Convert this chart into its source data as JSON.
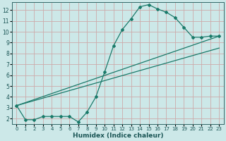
{
  "xlabel": "Humidex (Indice chaleur)",
  "bg_color": "#cce8e8",
  "grid_color": "#aacccc",
  "line_color": "#1a7a6a",
  "xlim": [
    -0.5,
    23.5
  ],
  "ylim": [
    1.5,
    12.7
  ],
  "yticks": [
    2,
    3,
    4,
    5,
    6,
    7,
    8,
    9,
    10,
    11,
    12
  ],
  "xticks": [
    0,
    1,
    2,
    3,
    4,
    5,
    6,
    7,
    8,
    9,
    10,
    11,
    12,
    13,
    14,
    15,
    16,
    17,
    18,
    19,
    20,
    21,
    22,
    23
  ],
  "line1_x": [
    0,
    1,
    2,
    3,
    4,
    5,
    6,
    7,
    8,
    9,
    10,
    11,
    12,
    13,
    14,
    15,
    16,
    17,
    18,
    19,
    20,
    21,
    22,
    23
  ],
  "line1_y": [
    3.2,
    1.9,
    1.9,
    2.2,
    2.2,
    2.2,
    2.2,
    1.7,
    2.6,
    4.0,
    6.3,
    8.7,
    10.2,
    11.2,
    12.3,
    12.5,
    12.1,
    11.8,
    11.3,
    10.4,
    9.5,
    9.5,
    9.6,
    9.6
  ],
  "line2_x": [
    0,
    23
  ],
  "line2_y": [
    3.2,
    9.6
  ],
  "line3_x": [
    0,
    23
  ],
  "line3_y": [
    3.2,
    8.5
  ]
}
